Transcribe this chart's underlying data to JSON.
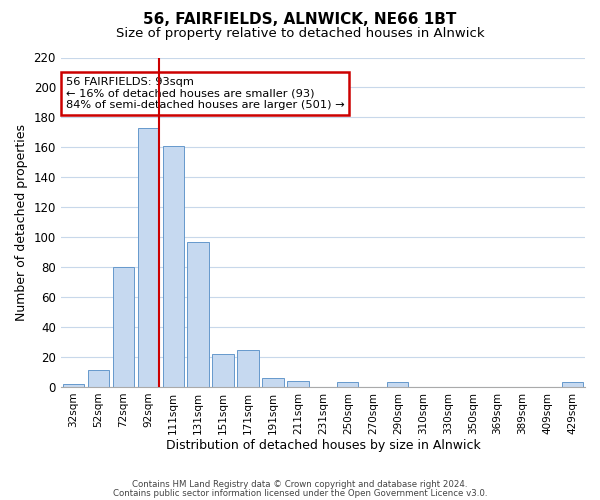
{
  "title": "56, FAIRFIELDS, ALNWICK, NE66 1BT",
  "subtitle": "Size of property relative to detached houses in Alnwick",
  "xlabel": "Distribution of detached houses by size in Alnwick",
  "ylabel": "Number of detached properties",
  "bar_labels": [
    "32sqm",
    "52sqm",
    "72sqm",
    "92sqm",
    "111sqm",
    "131sqm",
    "151sqm",
    "171sqm",
    "191sqm",
    "211sqm",
    "231sqm",
    "250sqm",
    "270sqm",
    "290sqm",
    "310sqm",
    "330sqm",
    "350sqm",
    "369sqm",
    "389sqm",
    "409sqm",
    "429sqm"
  ],
  "bar_values": [
    2,
    11,
    80,
    173,
    161,
    97,
    22,
    25,
    6,
    4,
    0,
    3,
    0,
    3,
    0,
    0,
    0,
    0,
    0,
    0,
    3
  ],
  "bar_color": "#c6d9f0",
  "bar_edge_color": "#6699cc",
  "vline_color": "#cc0000",
  "ylim": [
    0,
    220
  ],
  "yticks": [
    0,
    20,
    40,
    60,
    80,
    100,
    120,
    140,
    160,
    180,
    200,
    220
  ],
  "annotation_title": "56 FAIRFIELDS: 93sqm",
  "annotation_line1": "← 16% of detached houses are smaller (93)",
  "annotation_line2": "84% of semi-detached houses are larger (501) →",
  "annotation_box_color": "#cc0000",
  "footer1": "Contains HM Land Registry data © Crown copyright and database right 2024.",
  "footer2": "Contains public sector information licensed under the Open Government Licence v3.0.",
  "bg_color": "#ffffff",
  "grid_color": "#c8d8ea"
}
